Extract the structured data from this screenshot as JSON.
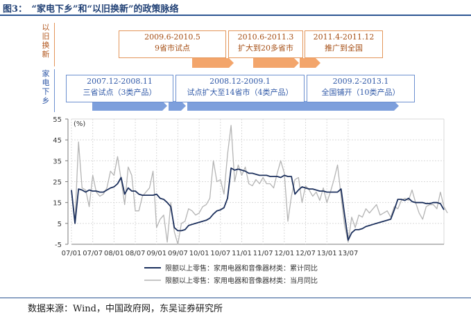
{
  "figure": {
    "title": "图3：　“家电下乡”和“以旧换新”的政策脉络",
    "source": "数据来源：Wind，中国政府网，东吴证券研究所"
  },
  "timeline": {
    "side_labels": {
      "trade_in": [
        "以",
        "旧",
        "换",
        "新"
      ],
      "rural": [
        "家",
        "电",
        "下",
        "乡"
      ]
    },
    "trade_in": [
      {
        "period": "2009.6-2010.5",
        "desc": "9省市试点"
      },
      {
        "period": "2010.6-2011.3",
        "desc": "扩大到20多省市"
      },
      {
        "period": "2011.4-2011.12",
        "desc": "推广到全国"
      }
    ],
    "rural": [
      {
        "period": "2007.12-2008.11",
        "desc": "三省试点（3类产品）"
      },
      {
        "period": "2008.12-2009.1",
        "desc": "试点扩大至14省市（4类产品）"
      },
      {
        "period": "2009.2-2013.1",
        "desc": "全国铺开（10类产品）"
      }
    ],
    "colors": {
      "orange": "#f3a56b",
      "orange_border": "#e39559",
      "blue": "#7d9fdc",
      "blue_border": "#6b8fcf"
    }
  },
  "chart_data": {
    "type": "line",
    "ylabel": "(%)",
    "ylim": [
      -5,
      55
    ],
    "yticks": [
      -5,
      5,
      15,
      25,
      35,
      45,
      55
    ],
    "x_start": "2007-01",
    "xtick_labels": [
      "07/01",
      "07/07",
      "08/01",
      "08/07",
      "09/01",
      "09/07",
      "10/01",
      "10/07",
      "11/01",
      "11/07",
      "12/01",
      "12/07",
      "13/01",
      "13/07"
    ],
    "grid": true,
    "legend_position": "bottom",
    "series": [
      {
        "name": "限额以上零售：家用电器和音像器材类：累计同比",
        "color": "#1b2f5c",
        "values": [
          21,
          5,
          21.5,
          21,
          20,
          21,
          20.5,
          20.5,
          20,
          20,
          21,
          22,
          22.5,
          24,
          27,
          19,
          22,
          20.5,
          20.5,
          19,
          18.5,
          18.5,
          18.5,
          18.5,
          19,
          17,
          16.5,
          15,
          13,
          3,
          1.5,
          1.5,
          2,
          4,
          4.5,
          5,
          5.5,
          6,
          6.5,
          7.5,
          9.5,
          11,
          11.5,
          12.5,
          17,
          31.5,
          30.5,
          31,
          30.5,
          30,
          29,
          29,
          28.5,
          28,
          28,
          28,
          27.5,
          27.5,
          27.5,
          27,
          28,
          27.5,
          27.5,
          19,
          21,
          22.5,
          22,
          21.5,
          21.5,
          21,
          20.5,
          20.5,
          20,
          20,
          20,
          20,
          21.5,
          9,
          -3,
          0.5,
          2,
          2,
          2.5,
          3.5,
          4,
          4.5,
          5,
          5.5,
          6,
          6.5,
          7,
          11.5,
          16.5,
          16.5,
          16,
          17,
          15.5,
          15,
          15,
          15,
          14.5,
          14.5,
          15,
          15,
          14.5,
          11.5
        ]
      },
      {
        "name": "限额以上零售：家用电器和音像器材类：当月同比",
        "color": "#b4b4b4",
        "values": [
          21,
          6,
          44,
          22,
          21,
          13,
          28,
          20,
          18,
          19,
          22,
          30,
          28,
          37,
          26,
          14,
          32,
          28,
          11,
          11,
          18,
          20,
          22,
          30,
          3,
          7,
          9,
          -4,
          15,
          1,
          -5,
          5,
          6,
          12,
          11,
          9,
          10,
          13,
          14,
          17,
          35,
          25,
          26,
          19,
          38,
          52,
          25,
          33,
          28,
          32,
          24,
          23,
          26,
          24,
          27,
          24,
          24,
          22,
          29,
          35,
          29,
          6,
          18,
          26,
          27,
          15,
          23,
          21,
          18,
          20,
          16,
          22,
          15,
          20,
          26,
          33,
          18,
          4,
          -4,
          8,
          3,
          9,
          8,
          12,
          10,
          12,
          14,
          9,
          10,
          11,
          8,
          13,
          12,
          16,
          17,
          16,
          21,
          15,
          10,
          7,
          13,
          14,
          14,
          12,
          20,
          13,
          10
        ]
      }
    ]
  }
}
